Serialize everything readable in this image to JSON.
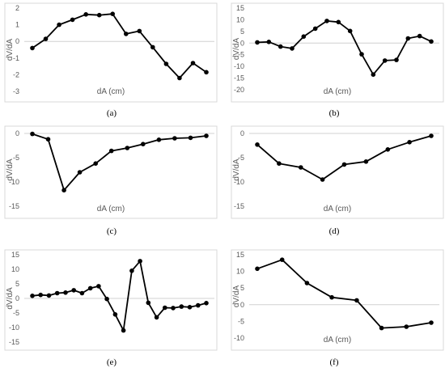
{
  "chart_data": [
    {
      "id": "a",
      "type": "line",
      "caption": "(a)",
      "xlabel": "dA (cm)",
      "ylabel": "dV/dA",
      "ylim": [
        -3,
        2
      ],
      "yticks": [
        2,
        1,
        0,
        -1,
        -2,
        -3
      ],
      "values": [
        -0.4,
        0.15,
        1.0,
        1.3,
        1.62,
        1.58,
        1.65,
        0.45,
        0.62,
        -0.35,
        -1.35,
        -2.2,
        -1.3,
        -1.85
      ]
    },
    {
      "id": "b",
      "type": "line",
      "caption": "(b)",
      "xlabel": "dA (cm)",
      "ylabel": "dV/dA",
      "ylim": [
        -20,
        15
      ],
      "yticks": [
        15,
        10,
        5,
        0,
        -5,
        -10,
        -15,
        -20
      ],
      "values": [
        0.3,
        0.5,
        -1.5,
        -2.3,
        2.8,
        6.2,
        9.5,
        9.0,
        5.2,
        -4.8,
        -13.5,
        -7.5,
        -7.2,
        2.0,
        3.0,
        0.7
      ]
    },
    {
      "id": "c",
      "type": "line",
      "caption": "(c)",
      "xlabel": "dA (cm)",
      "ylabel": "dV/dA",
      "ylim": [
        -15,
        0
      ],
      "yticks": [
        0,
        -5,
        -10,
        -15
      ],
      "values": [
        -0.1,
        -1.2,
        -11.7,
        -8.0,
        -6.2,
        -3.6,
        -3.0,
        -2.2,
        -1.3,
        -1.0,
        -0.9,
        -0.5
      ]
    },
    {
      "id": "d",
      "type": "line",
      "caption": "(d)",
      "xlabel": "dA (cm)",
      "ylabel": "dV/dA",
      "ylim": [
        -15,
        0
      ],
      "yticks": [
        0,
        -5,
        -10,
        -15
      ],
      "values": [
        -2.3,
        -6.2,
        -7.0,
        -9.5,
        -6.4,
        -5.8,
        -3.3,
        -1.8,
        -0.5
      ]
    },
    {
      "id": "e",
      "type": "line",
      "caption": "(e)",
      "xlabel": "",
      "ylabel": "dV/dA",
      "ylim": [
        -15,
        15
      ],
      "yticks": [
        15,
        10,
        5,
        0,
        -5,
        -10,
        -15
      ],
      "values": [
        0.9,
        1.2,
        1.0,
        1.8,
        2.0,
        2.8,
        1.8,
        3.5,
        4.2,
        -0.2,
        -5.5,
        -11.0,
        9.5,
        12.8,
        -1.5,
        -6.5,
        -3.2,
        -3.3,
        -2.8,
        -3.0,
        -2.4,
        -1.6
      ]
    },
    {
      "id": "f",
      "type": "line",
      "caption": "(f)",
      "xlabel": "dA (cm)",
      "ylabel": "dV/dA",
      "ylim": [
        -10,
        15
      ],
      "yticks": [
        15,
        10,
        5,
        0,
        -5,
        -10
      ],
      "values": [
        10.8,
        13.5,
        6.5,
        2.2,
        1.3,
        -7.0,
        -6.6,
        -5.4
      ]
    }
  ]
}
